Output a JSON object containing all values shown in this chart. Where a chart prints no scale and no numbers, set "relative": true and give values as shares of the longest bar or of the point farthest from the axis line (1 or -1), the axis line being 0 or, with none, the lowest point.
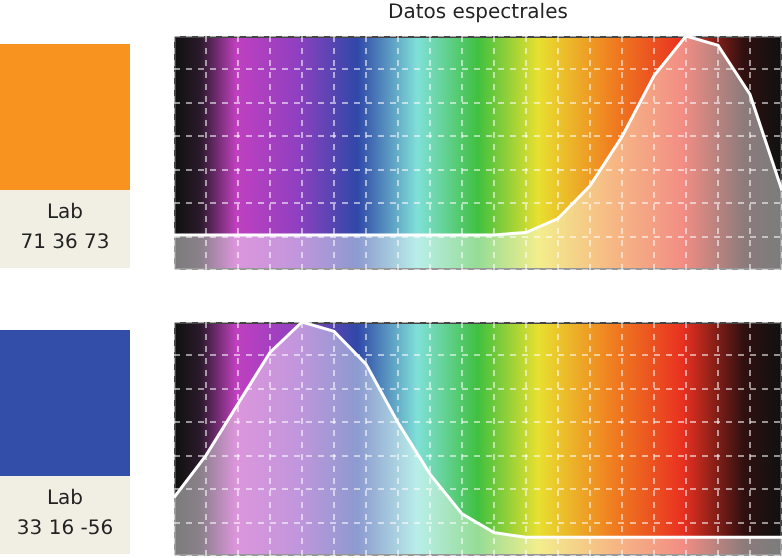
{
  "chart_data": [
    {
      "type": "area",
      "title": "Datos espectrales",
      "relative": true,
      "grid": true,
      "annotations": [
        "Lab",
        "71 36 73"
      ],
      "categories": [
        null,
        null,
        null,
        null,
        null,
        null,
        null,
        null,
        null,
        null,
        null,
        null,
        null,
        null,
        null,
        null,
        null,
        null,
        null,
        null
      ],
      "series": [
        {
          "color": "#ffffff",
          "values": [
            0.15,
            0.15,
            0.15,
            0.15,
            0.15,
            0.15,
            0.15,
            0.15,
            0.15,
            0.15,
            0.15,
            0.16,
            0.22,
            0.36,
            0.57,
            0.83,
            1.0,
            0.96,
            0.75,
            0.34
          ]
        }
      ]
    },
    {
      "type": "area",
      "relative": true,
      "grid": true,
      "annotations": [
        "Lab",
        "33 16 -56"
      ],
      "categories": [
        null,
        null,
        null,
        null,
        null,
        null,
        null,
        null,
        null,
        null,
        null,
        null,
        null,
        null,
        null,
        null,
        null,
        null,
        null,
        null
      ],
      "series": [
        {
          "color": "#ffffff",
          "values": [
            0.25,
            0.43,
            0.65,
            0.87,
            1.0,
            0.96,
            0.82,
            0.57,
            0.35,
            0.18,
            0.1,
            0.08,
            0.08,
            0.08,
            0.08,
            0.08,
            0.08,
            0.08,
            0.08,
            0.08
          ]
        }
      ]
    }
  ]
}
